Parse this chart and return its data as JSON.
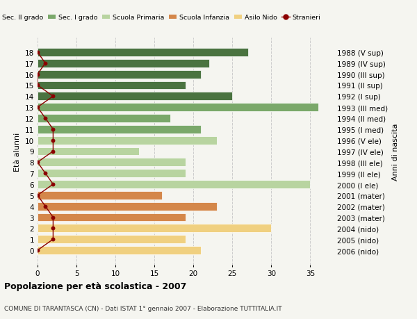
{
  "ages": [
    18,
    17,
    16,
    15,
    14,
    13,
    12,
    11,
    10,
    9,
    8,
    7,
    6,
    5,
    4,
    3,
    2,
    1,
    0
  ],
  "years": [
    "1988 (V sup)",
    "1989 (IV sup)",
    "1990 (III sup)",
    "1991 (II sup)",
    "1992 (I sup)",
    "1993 (III med)",
    "1994 (II med)",
    "1995 (I med)",
    "1996 (V ele)",
    "1997 (IV ele)",
    "1998 (III ele)",
    "1999 (II ele)",
    "2000 (I ele)",
    "2001 (mater)",
    "2002 (mater)",
    "2003 (mater)",
    "2004 (nido)",
    "2005 (nido)",
    "2006 (nido)"
  ],
  "bar_values": [
    27,
    22,
    21,
    19,
    25,
    36,
    17,
    21,
    23,
    13,
    19,
    19,
    35,
    16,
    23,
    19,
    30,
    19,
    21
  ],
  "bar_colors": [
    "#4a7340",
    "#4a7340",
    "#4a7340",
    "#4a7340",
    "#4a7340",
    "#7aa86a",
    "#7aa86a",
    "#7aa86a",
    "#b8d4a0",
    "#b8d4a0",
    "#b8d4a0",
    "#b8d4a0",
    "#b8d4a0",
    "#d4874a",
    "#d4874a",
    "#d4874a",
    "#f0d080",
    "#f0d080",
    "#f0d080"
  ],
  "stranieri_values": [
    0,
    1,
    0,
    0,
    2,
    0,
    1,
    2,
    2,
    2,
    0,
    1,
    2,
    0,
    1,
    2,
    2,
    2,
    0
  ],
  "legend_labels": [
    "Sec. II grado",
    "Sec. I grado",
    "Scuola Primaria",
    "Scuola Infanzia",
    "Asilo Nido",
    "Stranieri"
  ],
  "legend_colors": [
    "#4a7340",
    "#7aa86a",
    "#b8d4a0",
    "#d4874a",
    "#f0d080",
    "#8b0000"
  ],
  "ylabel_left": "Età alunni",
  "ylabel_right": "Anni di nascita",
  "title": "Popolazione per età scolastica - 2007",
  "subtitle": "COMUNE DI TARANTASCA (CN) - Dati ISTAT 1° gennaio 2007 - Elaborazione TUTTITALIA.IT",
  "xlim": [
    0,
    38
  ],
  "background_color": "#f5f5f0",
  "grid_color": "#cccccc"
}
